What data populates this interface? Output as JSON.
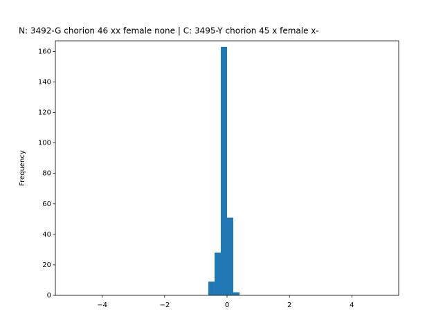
{
  "chart_data": {
    "type": "histogram",
    "title": "N: 3492-G chorion 46 xx female none | C: 3495-Y chorion 45 x female x-",
    "y_label": "Frequency",
    "bins": [
      -0.6,
      -0.4,
      -0.2,
      0,
      0.2,
      0.4
    ],
    "values": [
      9,
      28,
      163,
      51,
      2
    ],
    "color": "#1f77b4",
    "xlim": [
      -5.5,
      5.5
    ],
    "ylim": [
      0,
      167
    ],
    "xticks": [
      {
        "value": -4,
        "label": "−4"
      },
      {
        "value": -2,
        "label": "−2"
      },
      0,
      2,
      4
    ],
    "yticks": [
      0,
      20,
      40,
      60,
      80,
      100,
      120,
      140,
      160
    ]
  }
}
